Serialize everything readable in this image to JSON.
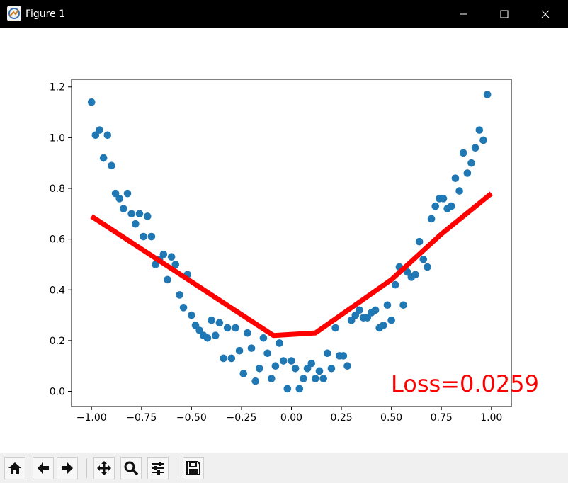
{
  "window": {
    "title": "Figure 1",
    "icons": [
      "figure-app-icon",
      "minimize-icon",
      "maximize-icon",
      "close-icon"
    ]
  },
  "toolbar": {
    "buttons": [
      "home-icon",
      "back-arrow-icon",
      "forward-arrow-icon",
      "pan-move-icon",
      "zoom-magnifier-icon",
      "configure-subplots-icon",
      "save-disk-icon"
    ]
  },
  "colors": {
    "scatter": "#1f77b4",
    "fit_line": "#ff0000",
    "loss_text": "#ff0000",
    "titlebar": "#000000",
    "toolbar_bg": "#f0f0f0"
  },
  "annotation": {
    "loss_text": "Loss=0.0259"
  },
  "chart_data": {
    "type": "scatter",
    "xlim": [
      -1.1,
      1.1
    ],
    "ylim": [
      -0.06,
      1.23
    ],
    "xticks": [
      -1.0,
      -0.75,
      -0.5,
      -0.25,
      0.0,
      0.25,
      0.5,
      0.75,
      1.0
    ],
    "xtick_labels": [
      "−1.00",
      "−0.75",
      "−0.50",
      "−0.25",
      "0.00",
      "0.25",
      "0.50",
      "0.75",
      "1.00"
    ],
    "yticks": [
      0.0,
      0.2,
      0.4,
      0.6,
      0.8,
      1.0,
      1.2
    ],
    "ytick_labels": [
      "0.0",
      "0.2",
      "0.4",
      "0.6",
      "0.8",
      "1.0",
      "1.2"
    ],
    "grid": false,
    "series": [
      {
        "kind": "scatter",
        "points": [
          [
            -1.0,
            1.14
          ],
          [
            -0.98,
            1.01
          ],
          [
            -0.96,
            1.03
          ],
          [
            -0.94,
            0.92
          ],
          [
            -0.92,
            1.01
          ],
          [
            -0.9,
            0.89
          ],
          [
            -0.88,
            0.78
          ],
          [
            -0.86,
            0.76
          ],
          [
            -0.84,
            0.72
          ],
          [
            -0.82,
            0.78
          ],
          [
            -0.8,
            0.7
          ],
          [
            -0.78,
            0.66
          ],
          [
            -0.76,
            0.7
          ],
          [
            -0.74,
            0.61
          ],
          [
            -0.72,
            0.69
          ],
          [
            -0.7,
            0.61
          ],
          [
            -0.68,
            0.5
          ],
          [
            -0.66,
            0.52
          ],
          [
            -0.64,
            0.54
          ],
          [
            -0.62,
            0.44
          ],
          [
            -0.6,
            0.53
          ],
          [
            -0.58,
            0.5
          ],
          [
            -0.56,
            0.38
          ],
          [
            -0.54,
            0.33
          ],
          [
            -0.52,
            0.46
          ],
          [
            -0.5,
            0.3
          ],
          [
            -0.48,
            0.26
          ],
          [
            -0.46,
            0.24
          ],
          [
            -0.44,
            0.22
          ],
          [
            -0.42,
            0.21
          ],
          [
            -0.4,
            0.28
          ],
          [
            -0.38,
            0.22
          ],
          [
            -0.36,
            0.27
          ],
          [
            -0.34,
            0.13
          ],
          [
            -0.32,
            0.25
          ],
          [
            -0.3,
            0.13
          ],
          [
            -0.28,
            0.25
          ],
          [
            -0.26,
            0.16
          ],
          [
            -0.24,
            0.07
          ],
          [
            -0.22,
            0.23
          ],
          [
            -0.2,
            0.17
          ],
          [
            -0.18,
            0.04
          ],
          [
            -0.16,
            0.09
          ],
          [
            -0.14,
            0.21
          ],
          [
            -0.12,
            0.15
          ],
          [
            -0.1,
            0.05
          ],
          [
            -0.08,
            0.1
          ],
          [
            -0.06,
            0.19
          ],
          [
            -0.04,
            0.12
          ],
          [
            -0.02,
            0.01
          ],
          [
            0.0,
            0.12
          ],
          [
            0.02,
            0.09
          ],
          [
            0.04,
            0.01
          ],
          [
            0.06,
            0.05
          ],
          [
            0.08,
            0.09
          ],
          [
            0.1,
            0.11
          ],
          [
            0.12,
            0.05
          ],
          [
            0.14,
            0.08
          ],
          [
            0.16,
            0.05
          ],
          [
            0.18,
            0.15
          ],
          [
            0.2,
            0.09
          ],
          [
            0.22,
            0.25
          ],
          [
            0.24,
            0.14
          ],
          [
            0.26,
            0.14
          ],
          [
            0.28,
            0.1
          ],
          [
            0.3,
            0.28
          ],
          [
            0.32,
            0.3
          ],
          [
            0.34,
            0.32
          ],
          [
            0.36,
            0.29
          ],
          [
            0.38,
            0.29
          ],
          [
            0.4,
            0.31
          ],
          [
            0.42,
            0.32
          ],
          [
            0.44,
            0.25
          ],
          [
            0.46,
            0.26
          ],
          [
            0.48,
            0.34
          ],
          [
            0.5,
            0.28
          ],
          [
            0.52,
            0.42
          ],
          [
            0.54,
            0.49
          ],
          [
            0.56,
            0.34
          ],
          [
            0.58,
            0.47
          ],
          [
            0.6,
            0.45
          ],
          [
            0.62,
            0.46
          ],
          [
            0.64,
            0.59
          ],
          [
            0.66,
            0.52
          ],
          [
            0.68,
            0.49
          ],
          [
            0.7,
            0.68
          ],
          [
            0.72,
            0.73
          ],
          [
            0.74,
            0.76
          ],
          [
            0.76,
            0.76
          ],
          [
            0.78,
            0.72
          ],
          [
            0.8,
            0.73
          ],
          [
            0.82,
            0.84
          ],
          [
            0.84,
            0.79
          ],
          [
            0.86,
            0.94
          ],
          [
            0.88,
            0.86
          ],
          [
            0.9,
            0.9
          ],
          [
            0.92,
            0.96
          ],
          [
            0.94,
            1.03
          ],
          [
            0.96,
            0.99
          ],
          [
            0.98,
            1.17
          ]
        ]
      },
      {
        "kind": "line",
        "points": [
          [
            -1.0,
            0.69
          ],
          [
            -0.09,
            0.22
          ],
          [
            0.12,
            0.23
          ],
          [
            0.5,
            0.44
          ],
          [
            0.75,
            0.62
          ],
          [
            1.0,
            0.78
          ]
        ]
      }
    ]
  }
}
